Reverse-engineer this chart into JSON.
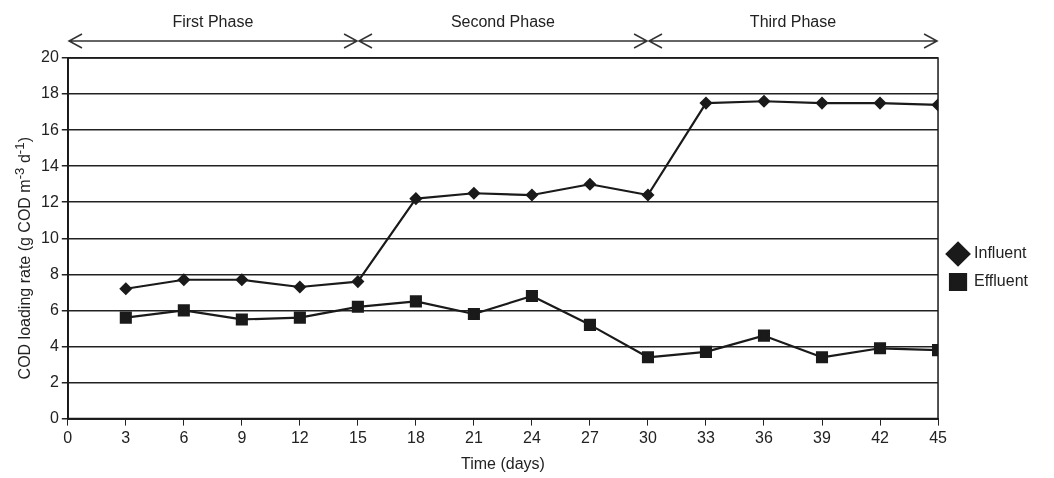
{
  "chart_data": {
    "type": "line",
    "xlabel": "Time (days)",
    "ylabel": "COD loading rate (g COD m$^{-3}$ d$^{-1}$)",
    "x": [
      3,
      6,
      9,
      12,
      15,
      18,
      21,
      24,
      27,
      30,
      33,
      36,
      39,
      42,
      45
    ],
    "series": [
      {
        "name": "Influent",
        "color": "#1a1a1a",
        "marker": "diamond",
        "values": [
          7.2,
          7.7,
          7.7,
          7.3,
          7.6,
          12.2,
          12.5,
          12.4,
          13.0,
          12.4,
          17.5,
          17.6,
          17.5,
          17.5,
          17.4
        ]
      },
      {
        "name": "Effluent",
        "color": "#1a1a1a",
        "marker": "square",
        "values": [
          5.6,
          6.0,
          5.5,
          5.6,
          6.2,
          6.5,
          5.8,
          6.8,
          5.2,
          3.4,
          3.7,
          4.6,
          3.4,
          3.9,
          3.8
        ]
      }
    ],
    "xlim": [
      0,
      45
    ],
    "xticks": [
      0,
      3,
      6,
      9,
      12,
      15,
      18,
      21,
      24,
      27,
      30,
      33,
      36,
      39,
      42,
      45
    ],
    "ylim": [
      0,
      20
    ],
    "yticks": [
      0,
      2,
      4,
      6,
      8,
      10,
      12,
      14,
      16,
      18,
      20
    ],
    "annotations": [
      "First Phase",
      "Second Phase",
      "Third Phase"
    ],
    "grid": "y",
    "legend": "right",
    "line_style": "solid"
  }
}
